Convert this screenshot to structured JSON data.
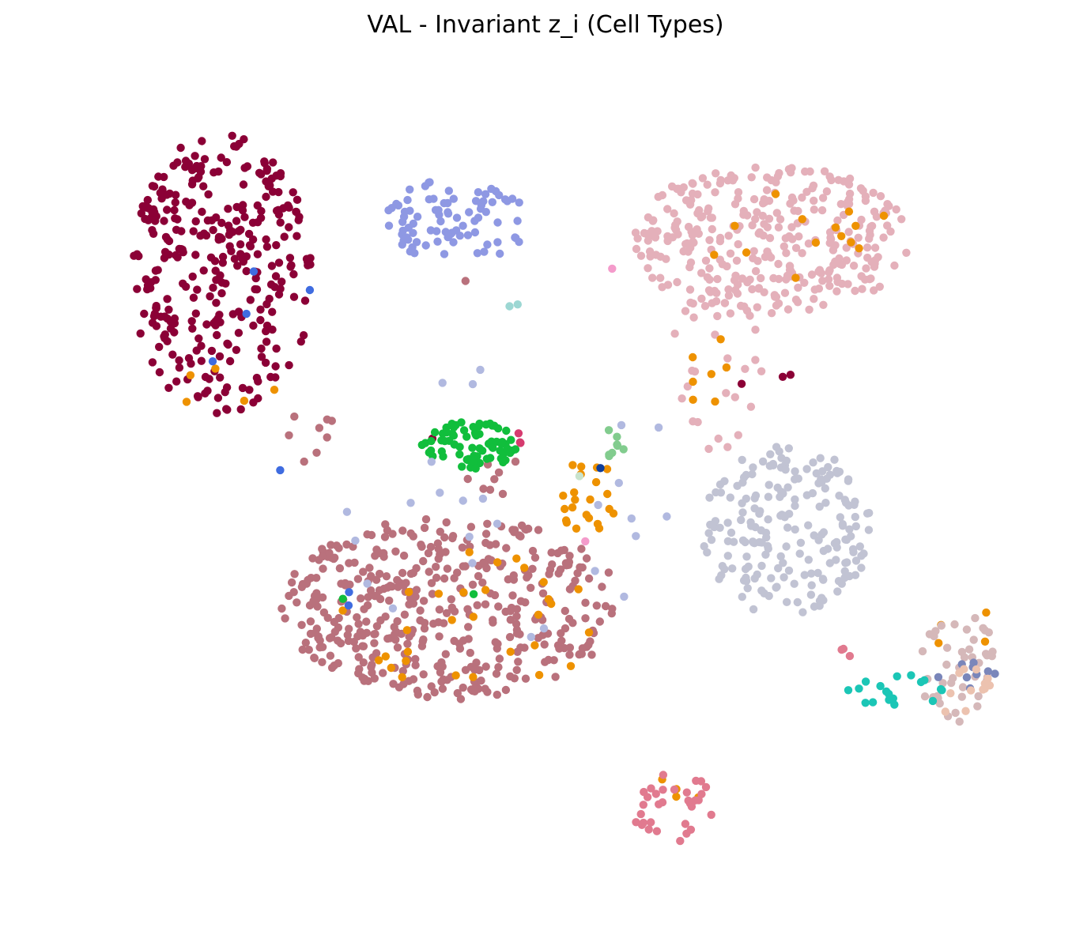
{
  "chart_data": {
    "type": "scatter",
    "title": "VAL - Invariant z_i (Cell Types)",
    "xlabel": "",
    "ylabel": "",
    "axes_visible": false,
    "legend": "none",
    "grid": false,
    "xlim": [
      -15,
      15
    ],
    "ylim": [
      -15,
      15
    ],
    "series": [
      {
        "color": "#8b0036",
        "clusters": [
          {
            "cx": -9.9,
            "cy": 7.8,
            "rx": 2.8,
            "ry": 5.3,
            "n": 320,
            "seed": 11
          },
          {
            "cx": -8.5,
            "cy": 11.6,
            "rx": 0.3,
            "ry": 0.2,
            "n": 2,
            "seed": 12
          },
          {
            "cx": 7.1,
            "cy": 3.9,
            "rx": 2.0,
            "ry": 1.0,
            "n": 3,
            "seed": 13
          },
          {
            "cx": -3.4,
            "cy": 1.6,
            "rx": 0.1,
            "ry": 0.1,
            "n": 1,
            "seed": 14
          }
        ]
      },
      {
        "color": "#b9717c",
        "clusters": [
          {
            "cx": -2.9,
            "cy": -4.7,
            "rx": 5.3,
            "ry": 3.4,
            "n": 430,
            "seed": 21
          },
          {
            "cx": -7.0,
            "cy": 1.3,
            "rx": 1.1,
            "ry": 1.6,
            "n": 8,
            "seed": 22
          },
          {
            "cx": -1.6,
            "cy": 0.2,
            "rx": 0.8,
            "ry": 1.1,
            "n": 8,
            "seed": 23
          },
          {
            "cx": -2.4,
            "cy": 7.4,
            "rx": 0.1,
            "ry": 0.1,
            "n": 1,
            "seed": 24
          }
        ]
      },
      {
        "color": "#e4b0ba",
        "clusters": [
          {
            "cx": 6.9,
            "cy": 9.0,
            "rx": 4.2,
            "ry": 2.9,
            "n": 330,
            "seed": 31
          },
          {
            "cx": 5.3,
            "cy": 4.4,
            "rx": 1.5,
            "ry": 3.4,
            "n": 28,
            "seed": 32
          }
        ]
      },
      {
        "color": "#c1c3d3",
        "clusters": [
          {
            "cx": 7.4,
            "cy": -1.8,
            "rx": 2.6,
            "ry": 3.2,
            "n": 200,
            "seed": 41
          }
        ]
      },
      {
        "color": "#8e98e3",
        "clusters": [
          {
            "cx": -2.7,
            "cy": 9.7,
            "rx": 2.2,
            "ry": 1.6,
            "n": 85,
            "seed": 51
          }
        ]
      },
      {
        "color": "#11be3c",
        "clusters": [
          {
            "cx": -2.3,
            "cy": 1.4,
            "rx": 1.5,
            "ry": 0.9,
            "n": 75,
            "seed": 61
          },
          {
            "cx": -6.2,
            "cy": -4.3,
            "rx": 0.1,
            "ry": 0.1,
            "n": 1,
            "seed": 62
          },
          {
            "cx": -2.2,
            "cy": -4.2,
            "rx": 0.1,
            "ry": 0.1,
            "n": 1,
            "seed": 63
          }
        ]
      },
      {
        "color": "#ee9200",
        "clusters": [
          {
            "cx": 1.3,
            "cy": -0.7,
            "rx": 1.0,
            "ry": 1.6,
            "n": 22,
            "seed": 71
          },
          {
            "cx": -2.3,
            "cy": -5.0,
            "rx": 4.6,
            "ry": 2.6,
            "n": 30,
            "seed": 72
          },
          {
            "cx": 7.7,
            "cy": 9.2,
            "rx": 3.1,
            "ry": 1.7,
            "n": 14,
            "seed": 73
          },
          {
            "cx": 4.9,
            "cy": 4.3,
            "rx": 0.9,
            "ry": 1.5,
            "n": 7,
            "seed": 74
          },
          {
            "cx": 4.0,
            "cy": -11.7,
            "rx": 0.7,
            "ry": 1.3,
            "n": 4,
            "seed": 75
          },
          {
            "cx": -9.5,
            "cy": 3.6,
            "rx": 1.7,
            "ry": 1.4,
            "n": 5,
            "seed": 76
          },
          {
            "cx": 12.4,
            "cy": -5.4,
            "rx": 1.6,
            "ry": 0.9,
            "n": 4,
            "seed": 77
          }
        ]
      },
      {
        "color": "#e17a8f",
        "clusters": [
          {
            "cx": 3.9,
            "cy": -12.1,
            "rx": 1.3,
            "ry": 1.3,
            "n": 32,
            "seed": 81
          },
          {
            "cx": 9.3,
            "cy": -6.2,
            "rx": 0.3,
            "ry": 0.3,
            "n": 3,
            "seed": 82
          }
        ]
      },
      {
        "color": "#b1b9e0",
        "clusters": [
          {
            "cx": -1.0,
            "cy": -0.8,
            "rx": 5.6,
            "ry": 5.2,
            "n": 26,
            "seed": 91
          }
        ]
      },
      {
        "color": "#d5b8b9",
        "clusters": [
          {
            "cx": 12.7,
            "cy": -6.9,
            "rx": 1.3,
            "ry": 2.1,
            "n": 44,
            "seed": 101
          }
        ]
      },
      {
        "color": "#1bc6b6",
        "clusters": [
          {
            "cx": 10.7,
            "cy": -7.7,
            "rx": 1.6,
            "ry": 0.8,
            "n": 18,
            "seed": 111
          }
        ]
      },
      {
        "color": "#7a86ba",
        "clusters": [
          {
            "cx": 12.9,
            "cy": -7.3,
            "rx": 0.9,
            "ry": 0.7,
            "n": 10,
            "seed": 121
          }
        ]
      },
      {
        "color": "#ecc2af",
        "clusters": [
          {
            "cx": 12.8,
            "cy": -7.9,
            "rx": 1.1,
            "ry": 1.0,
            "n": 12,
            "seed": 131
          }
        ]
      },
      {
        "color": "#d63b6f",
        "clusters": [
          {
            "cx": -0.8,
            "cy": 1.6,
            "rx": 0.2,
            "ry": 0.3,
            "n": 3,
            "seed": 141
          }
        ]
      },
      {
        "color": "#3f6ce0",
        "clusters": [
          {
            "cx": -9.0,
            "cy": 4.0,
            "rx": 2.2,
            "ry": 6.0,
            "n": 5,
            "seed": 151
          },
          {
            "cx": -5.8,
            "cy": -4.7,
            "rx": 0.6,
            "ry": 3.0,
            "n": 2,
            "seed": 152
          }
        ]
      },
      {
        "color": "#82cc8e",
        "clusters": [
          {
            "cx": 2.0,
            "cy": 1.6,
            "rx": 0.5,
            "ry": 0.7,
            "n": 8,
            "seed": 161
          }
        ]
      },
      {
        "color": "#9cd7d3",
        "clusters": [
          {
            "cx": -1.0,
            "cy": 6.6,
            "rx": 0.2,
            "ry": 0.1,
            "n": 2,
            "seed": 171
          }
        ]
      },
      {
        "color": "#f49bcb",
        "clusters": [
          {
            "cx": 2.1,
            "cy": 7.9,
            "rx": 0.1,
            "ry": 0.1,
            "n": 1,
            "seed": 181
          },
          {
            "cx": 1.2,
            "cy": -2.2,
            "rx": 0.1,
            "ry": 0.1,
            "n": 1,
            "seed": 182
          }
        ]
      },
      {
        "color": "#0f3e9b",
        "clusters": [
          {
            "cx": 1.6,
            "cy": 0.5,
            "rx": 0.1,
            "ry": 0.1,
            "n": 1,
            "seed": 191
          }
        ]
      },
      {
        "color": "#c8e3cd",
        "clusters": [
          {
            "cx": 1.1,
            "cy": 0.2,
            "rx": 0.1,
            "ry": 0.1,
            "n": 1,
            "seed": 201
          }
        ]
      }
    ]
  }
}
